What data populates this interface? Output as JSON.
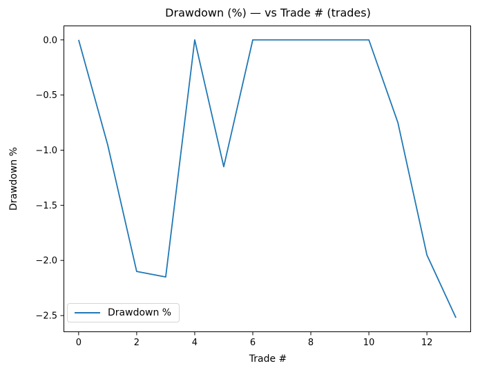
{
  "chart_data": {
    "type": "line",
    "title": "Drawdown (%) — vs Trade # (trades)",
    "xlabel": "Trade #",
    "ylabel": "Drawdown %",
    "x": [
      0,
      1,
      2,
      3,
      4,
      5,
      6,
      7,
      8,
      9,
      10,
      11,
      12,
      13
    ],
    "series": [
      {
        "name": "Drawdown %",
        "color": "#1f77b4",
        "values": [
          0.0,
          -0.95,
          -2.1,
          -2.15,
          0.0,
          -1.15,
          0.0,
          0.0,
          0.0,
          0.0,
          0.0,
          -0.75,
          -1.95,
          -2.52
        ]
      }
    ],
    "xlim": [
      -0.52,
      13.52
    ],
    "ylim": [
      -2.65,
      0.13
    ],
    "xticks": {
      "values": [
        0,
        2,
        4,
        6,
        8,
        10,
        12
      ],
      "labels": [
        "0",
        "2",
        "4",
        "6",
        "8",
        "10",
        "12"
      ]
    },
    "yticks": {
      "values": [
        0.0,
        -0.5,
        -1.0,
        -1.5,
        -2.0,
        -2.5
      ],
      "labels": [
        "0.0",
        "−0.5",
        "−1.0",
        "−1.5",
        "−2.0",
        "−2.5"
      ]
    },
    "legend": {
      "position": "lower left",
      "label": "Drawdown %"
    },
    "grid": false,
    "axis_color": "#000000",
    "background": "#ffffff"
  }
}
